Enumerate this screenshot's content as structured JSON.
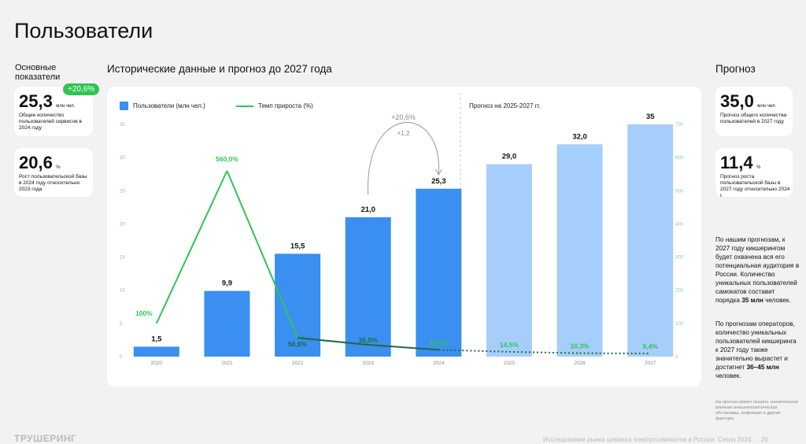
{
  "page": {
    "title": "Пользователи",
    "footer_left": "ТРУШЕРИНГ",
    "footer_right": "Исследование рынка шеринга электросамокатов в России. Сезон 2024 … 20"
  },
  "left": {
    "heading": "Основные показатели",
    "cards": [
      {
        "value": "25,3",
        "unit": "млн чел.",
        "badge": "+20,6%",
        "desc": "Общее количество пользователей сервисов в 2024 году"
      },
      {
        "value": "20,6",
        "unit": "%",
        "desc": "Рост пользовательской базы в 2024 году относительно 2023 года"
      }
    ]
  },
  "center": {
    "heading": "Исторические данные и прогноз до 2027 года"
  },
  "right": {
    "heading": "Прогноз",
    "cards": [
      {
        "value": "35,0",
        "unit": "млн чел.",
        "desc": "Прогноз общего количества пользователей в 2027 году"
      },
      {
        "value": "11,4",
        "unit": "%",
        "desc": "Прогноз роста пользовательской базы в 2027 году относительно 2024 г."
      }
    ],
    "p1_a": "По нашим прогнозам, к 2027 году кикшерингом будет охвачена вся его потенциальная аудитория в России. Количество уникальных пользователей самокатов составит порядка ",
    "p1_b": "35 млн",
    "p1_c": " человек.",
    "p2_a": "По прогнозам операторов, количество уникальных пользователей кикшеринга к 2027 году также значительно вырастет и достигнет ",
    "p2_b": "36–45 млн",
    "p2_c": " человек.",
    "note": "На прогноз может оказать значительное влияние внешнеполитическая обстановка, инфляция и другие факторы."
  },
  "chart_data": {
    "type": "bar",
    "categories": [
      "2020",
      "2021",
      "2022",
      "2023",
      "2024",
      "2025",
      "2026",
      "2027"
    ],
    "series": [
      {
        "name": "Пользователи (млн чел.)",
        "type": "bar",
        "values": [
          1.5,
          9.9,
          15.5,
          21.0,
          25.3,
          29.0,
          32.0,
          35.0
        ],
        "labels": [
          "1,5",
          "9,9",
          "15,5",
          "21,0",
          "25,3",
          "29,0",
          "32,0",
          "35"
        ],
        "forecast_from_index": 5
      },
      {
        "name": "Темп прироста (%)",
        "type": "line",
        "axis": "right",
        "values": [
          100,
          560.0,
          56.6,
          35.5,
          20.6,
          14.5,
          10.3,
          9.4
        ],
        "labels": [
          "100%",
          "560,0%",
          "56,6%",
          "35,5%",
          "20,6%",
          "14,5%",
          "10,3%",
          "9,4%"
        ],
        "forecast_from_index": 4
      }
    ],
    "ylim_left": [
      0,
      35
    ],
    "yticks_left": [
      "0",
      "5",
      "10",
      "15",
      "20",
      "25",
      "30",
      "35"
    ],
    "ylim_right": [
      0,
      700
    ],
    "yticks_right": [
      "0",
      "100",
      "200",
      "300",
      "400",
      "500",
      "600",
      "700"
    ],
    "forecast_label": "Прогноз на 2025-2027 гг.",
    "annotation": {
      "top": "+20,6%",
      "bottom": "×1,2"
    },
    "colors": {
      "bar": "#3a8ff1",
      "bar_forecast": "#a6cefa",
      "line": "#2dc653",
      "line_dark": "#1f6b3a"
    },
    "grid": false,
    "legend": "top-left"
  }
}
